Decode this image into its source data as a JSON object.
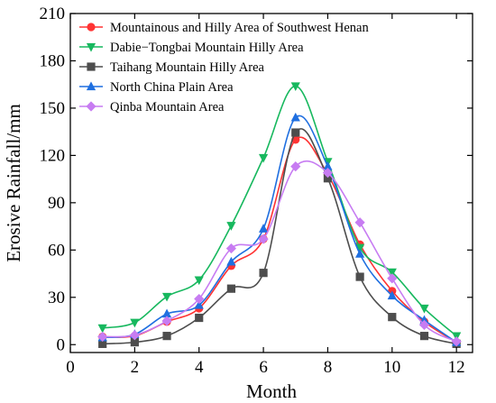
{
  "chart_data": {
    "type": "line",
    "xlabel": "Month",
    "ylabel": "Erosive Rainfall/mm",
    "xlim": [
      0,
      12.5
    ],
    "ylim": [
      -5,
      210
    ],
    "x_ticks": [
      0,
      2,
      4,
      6,
      8,
      10,
      12
    ],
    "y_ticks": [
      0,
      30,
      60,
      90,
      120,
      150,
      180,
      210
    ],
    "grid": false,
    "legend_position": "top-left",
    "x": [
      1,
      2,
      3,
      4,
      5,
      6,
      7,
      8,
      9,
      10,
      11,
      12
    ],
    "series": [
      {
        "name": "Mountainous and Hilly Area of Southwest Henan",
        "color": "#ff3333",
        "marker": "circle",
        "values": [
          5,
          5.5,
          14.5,
          23,
          50,
          67,
          130,
          108,
          63.5,
          34,
          14.5,
          1.5
        ]
      },
      {
        "name": "Dabie−Tongbai Mountain Hilly Area",
        "color": "#17b85e",
        "marker": "triangle-down",
        "values": [
          10.5,
          14,
          30.5,
          41,
          75.5,
          118.5,
          164,
          116,
          61.5,
          46,
          23,
          5.5
        ]
      },
      {
        "name": "Taihang Mountain Hilly Area",
        "color": "#4d4d4d",
        "marker": "square",
        "values": [
          0.5,
          1.5,
          5.5,
          17,
          35.5,
          45.5,
          134.5,
          105.5,
          43,
          17.5,
          5.5,
          0.5
        ]
      },
      {
        "name": "North China Plain Area",
        "color": "#1f6fe0",
        "marker": "triangle-up",
        "values": [
          4.5,
          6.5,
          19.5,
          25,
          52.5,
          73.5,
          144,
          113,
          57.5,
          31,
          15.5,
          1.5
        ]
      },
      {
        "name": "Qinba Mountain Area",
        "color": "#c77cf2",
        "marker": "diamond",
        "values": [
          5,
          6,
          15,
          29,
          61,
          67,
          113,
          109,
          77.5,
          42,
          12.5,
          2
        ]
      }
    ]
  }
}
